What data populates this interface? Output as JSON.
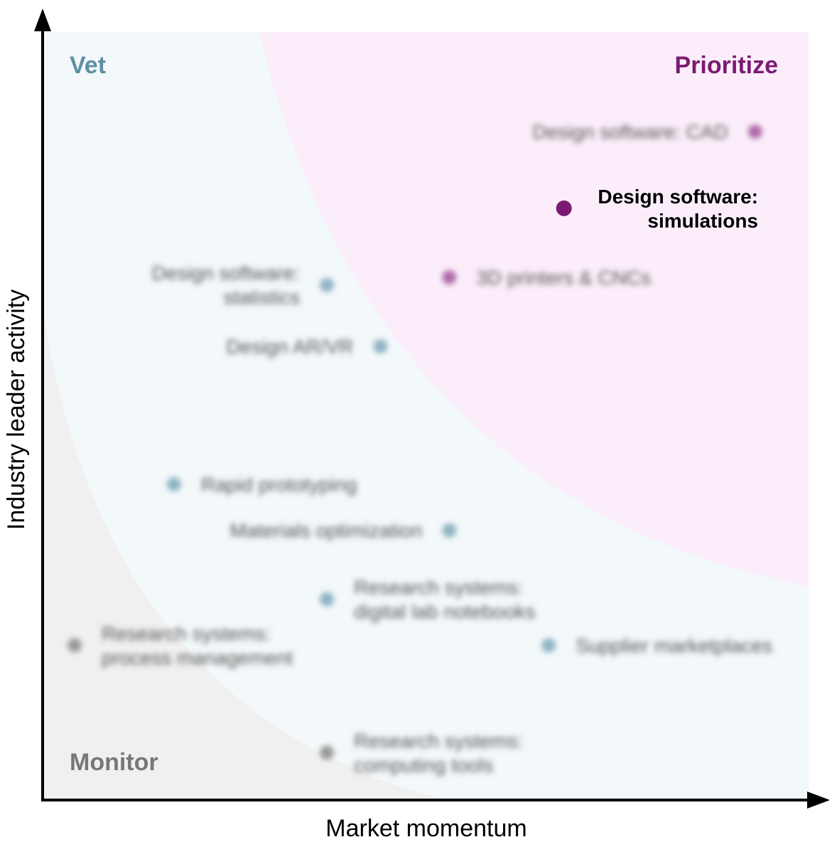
{
  "colors": {
    "prioritize": "#7b1a74",
    "vet": "#8fb4c4",
    "monitor": "#9a9a9a",
    "prioritize_region": "#fbeefa",
    "vet_region": "#f3f8fa",
    "monitor_region": "#f0f0f0",
    "axis": "#000000"
  },
  "chart_data": {
    "type": "scatter",
    "xlabel": "Market momentum",
    "ylabel": "Industry leader activity",
    "xlim": [
      0,
      100
    ],
    "ylim": [
      0,
      100
    ],
    "grid": false,
    "quadrants": [
      {
        "key": "vet",
        "label": "Vet"
      },
      {
        "key": "prioritize",
        "label": "Prioritize"
      },
      {
        "key": "monitor",
        "label": "Monitor"
      }
    ],
    "points": [
      {
        "id": "p0",
        "label": "Design software: CAD",
        "x": 93,
        "y": 87,
        "group": "prioritize",
        "highlight": false,
        "label_side": "left"
      },
      {
        "id": "p1",
        "label": "Design software: simulations",
        "label_lines": [
          "Design software:",
          "simulations"
        ],
        "x": 68,
        "y": 77,
        "group": "prioritize",
        "highlight": true,
        "label_side": "right"
      },
      {
        "id": "p2",
        "label": "3D printers & CNCs",
        "x": 53,
        "y": 68,
        "group": "prioritize",
        "highlight": false,
        "label_side": "right"
      },
      {
        "id": "p3",
        "label": "Design software: statistics",
        "label_lines": [
          "Design software:",
          "statistics"
        ],
        "x": 37,
        "y": 67,
        "group": "vet",
        "highlight": false,
        "label_side": "left"
      },
      {
        "id": "p4",
        "label": "Design AR/VR",
        "x": 44,
        "y": 59,
        "group": "vet",
        "highlight": false,
        "label_side": "left"
      },
      {
        "id": "p5",
        "label": "Rapid prototyping",
        "x": 17,
        "y": 41,
        "group": "vet",
        "highlight": false,
        "label_side": "right"
      },
      {
        "id": "p6",
        "label": "Materials optimization",
        "x": 53,
        "y": 35,
        "group": "vet",
        "highlight": false,
        "label_side": "left"
      },
      {
        "id": "p7",
        "label": "Research systems: digital lab notebooks",
        "label_lines": [
          "Research systems:",
          "digital lab notebooks"
        ],
        "x": 37,
        "y": 26,
        "group": "vet",
        "highlight": false,
        "label_side": "right"
      },
      {
        "id": "p8",
        "label": "Supplier marketplaces",
        "x": 66,
        "y": 20,
        "group": "vet",
        "highlight": false,
        "label_side": "right"
      },
      {
        "id": "p9",
        "label": "Research systems: process management",
        "label_lines": [
          "Research systems:",
          "process management"
        ],
        "x": 4,
        "y": 20,
        "group": "monitor",
        "highlight": false,
        "label_side": "right"
      },
      {
        "id": "p10",
        "label": "Research systems: computing tools",
        "label_lines": [
          "Research systems:",
          "computing tools"
        ],
        "x": 37,
        "y": 6,
        "group": "monitor",
        "highlight": false,
        "label_side": "right"
      }
    ]
  }
}
